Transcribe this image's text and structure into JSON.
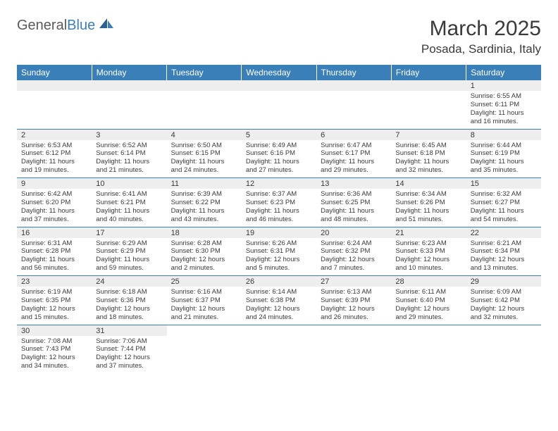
{
  "logo": {
    "part1": "General",
    "part2": "Blue"
  },
  "title": "March 2025",
  "location": "Posada, Sardinia, Italy",
  "colors": {
    "header_bg": "#3a7fb8",
    "header_text": "#ffffff",
    "daynum_bg": "#eeeeee",
    "border": "#3a7fb8",
    "text": "#3a3a3a",
    "logo_gray": "#5a5a5a",
    "logo_blue": "#3a7fb8"
  },
  "weekdays": [
    "Sunday",
    "Monday",
    "Tuesday",
    "Wednesday",
    "Thursday",
    "Friday",
    "Saturday"
  ],
  "weeks": [
    [
      null,
      null,
      null,
      null,
      null,
      null,
      {
        "n": "1",
        "sr": "6:55 AM",
        "ss": "6:11 PM",
        "dh": "11",
        "dm": "16"
      }
    ],
    [
      {
        "n": "2",
        "sr": "6:53 AM",
        "ss": "6:12 PM",
        "dh": "11",
        "dm": "19"
      },
      {
        "n": "3",
        "sr": "6:52 AM",
        "ss": "6:14 PM",
        "dh": "11",
        "dm": "21"
      },
      {
        "n": "4",
        "sr": "6:50 AM",
        "ss": "6:15 PM",
        "dh": "11",
        "dm": "24"
      },
      {
        "n": "5",
        "sr": "6:49 AM",
        "ss": "6:16 PM",
        "dh": "11",
        "dm": "27"
      },
      {
        "n": "6",
        "sr": "6:47 AM",
        "ss": "6:17 PM",
        "dh": "11",
        "dm": "29"
      },
      {
        "n": "7",
        "sr": "6:45 AM",
        "ss": "6:18 PM",
        "dh": "11",
        "dm": "32"
      },
      {
        "n": "8",
        "sr": "6:44 AM",
        "ss": "6:19 PM",
        "dh": "11",
        "dm": "35"
      }
    ],
    [
      {
        "n": "9",
        "sr": "6:42 AM",
        "ss": "6:20 PM",
        "dh": "11",
        "dm": "37"
      },
      {
        "n": "10",
        "sr": "6:41 AM",
        "ss": "6:21 PM",
        "dh": "11",
        "dm": "40"
      },
      {
        "n": "11",
        "sr": "6:39 AM",
        "ss": "6:22 PM",
        "dh": "11",
        "dm": "43"
      },
      {
        "n": "12",
        "sr": "6:37 AM",
        "ss": "6:23 PM",
        "dh": "11",
        "dm": "46"
      },
      {
        "n": "13",
        "sr": "6:36 AM",
        "ss": "6:25 PM",
        "dh": "11",
        "dm": "48"
      },
      {
        "n": "14",
        "sr": "6:34 AM",
        "ss": "6:26 PM",
        "dh": "11",
        "dm": "51"
      },
      {
        "n": "15",
        "sr": "6:32 AM",
        "ss": "6:27 PM",
        "dh": "11",
        "dm": "54"
      }
    ],
    [
      {
        "n": "16",
        "sr": "6:31 AM",
        "ss": "6:28 PM",
        "dh": "11",
        "dm": "56"
      },
      {
        "n": "17",
        "sr": "6:29 AM",
        "ss": "6:29 PM",
        "dh": "11",
        "dm": "59"
      },
      {
        "n": "18",
        "sr": "6:28 AM",
        "ss": "6:30 PM",
        "dh": "12",
        "dm": "2"
      },
      {
        "n": "19",
        "sr": "6:26 AM",
        "ss": "6:31 PM",
        "dh": "12",
        "dm": "5"
      },
      {
        "n": "20",
        "sr": "6:24 AM",
        "ss": "6:32 PM",
        "dh": "12",
        "dm": "7"
      },
      {
        "n": "21",
        "sr": "6:23 AM",
        "ss": "6:33 PM",
        "dh": "12",
        "dm": "10"
      },
      {
        "n": "22",
        "sr": "6:21 AM",
        "ss": "6:34 PM",
        "dh": "12",
        "dm": "13"
      }
    ],
    [
      {
        "n": "23",
        "sr": "6:19 AM",
        "ss": "6:35 PM",
        "dh": "12",
        "dm": "15"
      },
      {
        "n": "24",
        "sr": "6:18 AM",
        "ss": "6:36 PM",
        "dh": "12",
        "dm": "18"
      },
      {
        "n": "25",
        "sr": "6:16 AM",
        "ss": "6:37 PM",
        "dh": "12",
        "dm": "21"
      },
      {
        "n": "26",
        "sr": "6:14 AM",
        "ss": "6:38 PM",
        "dh": "12",
        "dm": "24"
      },
      {
        "n": "27",
        "sr": "6:13 AM",
        "ss": "6:39 PM",
        "dh": "12",
        "dm": "26"
      },
      {
        "n": "28",
        "sr": "6:11 AM",
        "ss": "6:40 PM",
        "dh": "12",
        "dm": "29"
      },
      {
        "n": "29",
        "sr": "6:09 AM",
        "ss": "6:42 PM",
        "dh": "12",
        "dm": "32"
      }
    ],
    [
      {
        "n": "30",
        "sr": "7:08 AM",
        "ss": "7:43 PM",
        "dh": "12",
        "dm": "34"
      },
      {
        "n": "31",
        "sr": "7:06 AM",
        "ss": "7:44 PM",
        "dh": "12",
        "dm": "37"
      },
      null,
      null,
      null,
      null,
      null
    ]
  ],
  "labels": {
    "sunrise": "Sunrise:",
    "sunset": "Sunset:",
    "daylight": "Daylight:",
    "hours": "hours",
    "and": "and",
    "minutes": "minutes."
  }
}
